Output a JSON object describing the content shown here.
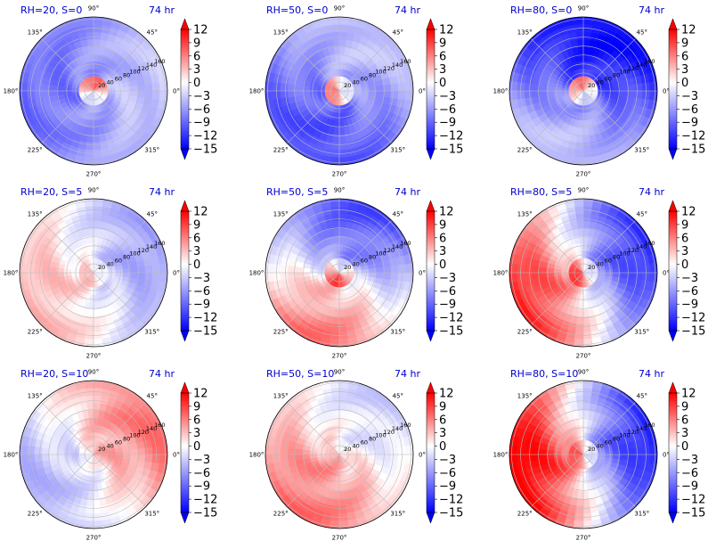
{
  "chart_data": {
    "type": "heatmap",
    "projection": "polar",
    "time_label": "74 hr",
    "angle_ticks": [
      "90°",
      "45°",
      "0°",
      "315°",
      "270°",
      "225°",
      "180°",
      "135°"
    ],
    "radial_ticks": [
      "20",
      "40",
      "60",
      "80",
      "100",
      "120",
      "140",
      "160"
    ],
    "colorbar": {
      "cmap": "bwr",
      "range": [
        -15,
        12
      ],
      "ticks": [
        "12",
        "9",
        "6",
        "3",
        "0",
        "−3",
        "−6",
        "−9",
        "−12",
        "−15"
      ]
    },
    "title_color": "#0000cc",
    "panels": [
      {
        "title": "RH=20, S=0",
        "time": "74 hr",
        "field": {
          "ring_mean": -6,
          "core": 10,
          "core_angle": 90,
          "wave_deg": 0,
          "wave_amp": 3,
          "phase": 30
        }
      },
      {
        "title": "RH=50, S=0",
        "time": "74 hr",
        "field": {
          "ring_mean": -7,
          "core": 10,
          "core_angle": 200,
          "wave_deg": 60,
          "wave_amp": 4,
          "phase": 0
        }
      },
      {
        "title": "RH=80, S=0",
        "time": "74 hr",
        "field": {
          "ring_mean": -9,
          "core": 11,
          "core_angle": 110,
          "wave_deg": 250,
          "wave_amp": 6,
          "phase": 90
        }
      },
      {
        "title": "RH=20, S=5",
        "time": "74 hr",
        "field": {
          "ring_mean": -1,
          "core": 3,
          "core_angle": 210,
          "wave_deg": 200,
          "wave_amp": 5,
          "phase": 0
        }
      },
      {
        "title": "RH=50, S=5",
        "time": "74 hr",
        "field": {
          "ring_mean": -2,
          "core": 8,
          "core_angle": 250,
          "wave_deg": 250,
          "wave_amp": 9,
          "phase": 0
        }
      },
      {
        "title": "RH=80, S=5",
        "time": "74 hr",
        "field": {
          "ring_mean": -1,
          "core": 8,
          "core_angle": 200,
          "wave_deg": 200,
          "wave_amp": 12,
          "phase": 0
        }
      },
      {
        "title": "RH=20, S=10",
        "time": "74 hr",
        "field": {
          "ring_mean": 1,
          "core": 3,
          "core_angle": 20,
          "wave_deg": 30,
          "wave_amp": 6,
          "phase": 0
        }
      },
      {
        "title": "RH=50, S=10",
        "time": "74 hr",
        "field": {
          "ring_mean": 2,
          "core": 3,
          "core_angle": 250,
          "wave_deg": 230,
          "wave_amp": 5,
          "phase": 0
        }
      },
      {
        "title": "RH=80, S=10",
        "time": "74 hr",
        "field": {
          "ring_mean": 0,
          "core": 6,
          "core_angle": 180,
          "wave_deg": 190,
          "wave_amp": 14,
          "phase": 0
        }
      }
    ]
  }
}
